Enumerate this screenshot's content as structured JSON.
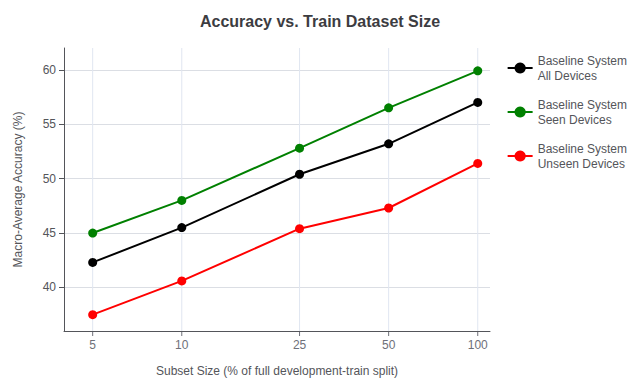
{
  "chart_data": {
    "type": "line",
    "title": "Accuracy vs. Train Dataset Size",
    "xlabel": "Subset Size (% of full development-train split)",
    "ylabel": "Macro-Average Accuracy (%)",
    "x": [
      5,
      10,
      25,
      50,
      100
    ],
    "series": [
      {
        "name": "Baseline System\nAll Devices",
        "color": "black",
        "values": [
          42.3,
          45.5,
          50.4,
          53.2,
          57.0
        ]
      },
      {
        "name": "Baseline System\nSeen Devices",
        "color": "green",
        "values": [
          45.0,
          48.0,
          52.8,
          56.5,
          59.9
        ]
      },
      {
        "name": "Baseline System\nUnseen Devices",
        "color": "red",
        "values": [
          37.5,
          40.6,
          45.4,
          47.3,
          51.4
        ]
      }
    ],
    "xlim": [
      4,
      110
    ],
    "ylim": [
      36,
      62
    ],
    "xticks": [
      5,
      10,
      25,
      50,
      100
    ],
    "yticks": [
      40,
      45,
      50,
      55,
      60
    ],
    "log": "x",
    "grid": true,
    "legend": "upper right",
    "marker": "circle"
  }
}
